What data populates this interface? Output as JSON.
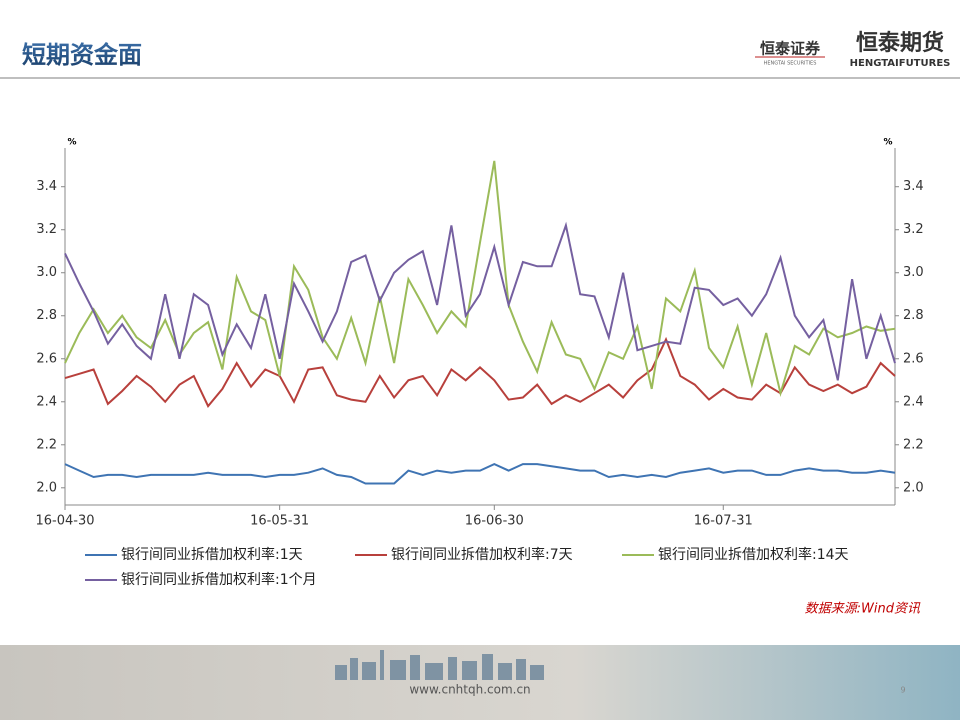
{
  "header": {
    "title": "短期资金面",
    "logo_left": "恒泰证券",
    "logo_left_sub": "HENGTAI SECURITIES",
    "logo_right": "恒泰期货",
    "logo_right_sub": "HENGTAIFUTURES"
  },
  "chart_data": {
    "type": "line",
    "y_unit": "%",
    "y2_unit": "%",
    "categories": [
      "16-04-30",
      null,
      null,
      null,
      null,
      null,
      null,
      null,
      null,
      null,
      null,
      null,
      null,
      null,
      null,
      "16-05-31",
      null,
      null,
      null,
      null,
      null,
      null,
      null,
      null,
      null,
      null,
      null,
      null,
      null,
      null,
      "16-06-30",
      null,
      null,
      null,
      null,
      null,
      null,
      null,
      null,
      null,
      null,
      null,
      null,
      null,
      null,
      null,
      "16-07-31",
      null,
      null,
      null,
      null,
      null,
      null,
      null,
      null,
      null,
      null,
      null,
      null
    ],
    "series": [
      {
        "name": "银行间同业拆借加权利率:1天",
        "color": "#3f74b3",
        "values": [
          2.11,
          2.08,
          2.05,
          2.06,
          2.06,
          2.05,
          2.06,
          2.06,
          2.06,
          2.06,
          2.07,
          2.06,
          2.06,
          2.06,
          2.05,
          2.06,
          2.06,
          2.07,
          2.09,
          2.06,
          2.05,
          2.02,
          2.02,
          2.02,
          2.08,
          2.06,
          2.08,
          2.07,
          2.08,
          2.08,
          2.11,
          2.08,
          2.11,
          2.11,
          2.1,
          2.09,
          2.08,
          2.08,
          2.05,
          2.06,
          2.05,
          2.06,
          2.05,
          2.07,
          2.08,
          2.09,
          2.07,
          2.08,
          2.08,
          2.06,
          2.06,
          2.08,
          2.09,
          2.08,
          2.08,
          2.07,
          2.07,
          2.08,
          2.07
        ]
      },
      {
        "name": "银行间同业拆借加权利率:7天",
        "color": "#b8403c",
        "values": [
          2.51,
          2.53,
          2.55,
          2.39,
          2.45,
          2.52,
          2.47,
          2.4,
          2.48,
          2.52,
          2.38,
          2.46,
          2.58,
          2.47,
          2.55,
          2.52,
          2.4,
          2.55,
          2.56,
          2.43,
          2.41,
          2.4,
          2.52,
          2.42,
          2.5,
          2.52,
          2.43,
          2.55,
          2.5,
          2.56,
          2.5,
          2.41,
          2.42,
          2.48,
          2.39,
          2.43,
          2.4,
          2.44,
          2.48,
          2.42,
          2.5,
          2.55,
          2.69,
          2.52,
          2.48,
          2.41,
          2.46,
          2.42,
          2.41,
          2.48,
          2.44,
          2.56,
          2.48,
          2.45,
          2.48,
          2.44,
          2.47,
          2.58,
          2.52
        ]
      },
      {
        "name": "银行间同业拆借加权利率:14天",
        "color": "#9bbb59",
        "values": [
          2.58,
          2.72,
          2.83,
          2.72,
          2.8,
          2.7,
          2.65,
          2.78,
          2.62,
          2.72,
          2.77,
          2.55,
          2.98,
          2.82,
          2.78,
          2.52,
          3.03,
          2.92,
          2.7,
          2.6,
          2.79,
          2.58,
          2.89,
          2.58,
          2.97,
          2.85,
          2.72,
          2.82,
          2.75,
          3.14,
          3.52,
          2.85,
          2.68,
          2.54,
          2.77,
          2.62,
          2.6,
          2.46,
          2.63,
          2.6,
          2.75,
          2.46,
          2.88,
          2.82,
          3.01,
          2.65,
          2.56,
          2.75,
          2.48,
          2.72,
          2.44,
          2.66,
          2.62,
          2.74,
          2.7,
          2.72,
          2.75,
          2.73,
          2.74
        ]
      },
      {
        "name": "银行间同业拆借加权利率:1个月",
        "color": "#7560a0",
        "values": [
          3.09,
          2.95,
          2.82,
          2.67,
          2.76,
          2.66,
          2.6,
          2.9,
          2.6,
          2.9,
          2.85,
          2.62,
          2.76,
          2.65,
          2.9,
          2.6,
          2.95,
          2.82,
          2.68,
          2.82,
          3.05,
          3.08,
          2.87,
          3.0,
          3.06,
          3.1,
          2.85,
          3.22,
          2.8,
          2.9,
          3.12,
          2.85,
          3.05,
          3.03,
          3.03,
          3.22,
          2.9,
          2.89,
          2.7,
          3.0,
          2.64,
          2.66,
          2.68,
          2.67,
          2.93,
          2.92,
          2.85,
          2.88,
          2.8,
          2.9,
          3.07,
          2.8,
          2.7,
          2.78,
          2.5,
          2.97,
          2.6,
          2.8,
          2.58
        ]
      }
    ],
    "ylim": [
      1.92,
      3.58
    ],
    "yticks": [
      {
        "value": 2,
        "label": "2.0"
      },
      2.2,
      2.4,
      2.6,
      2.8,
      {
        "value": 3,
        "label": "3.0"
      },
      3.2,
      3.4
    ],
    "y2lim": [
      1.92,
      3.58
    ],
    "y2ticks": [
      {
        "value": 2,
        "label": "2.0"
      },
      2.2,
      2.4,
      2.6,
      2.8,
      {
        "value": 3,
        "label": "3.0"
      },
      3.2,
      3.4
    ],
    "source": "数据来源:Wind资讯"
  },
  "footer": {
    "url": "www.cnhtqh.com.cn",
    "page": "9"
  }
}
